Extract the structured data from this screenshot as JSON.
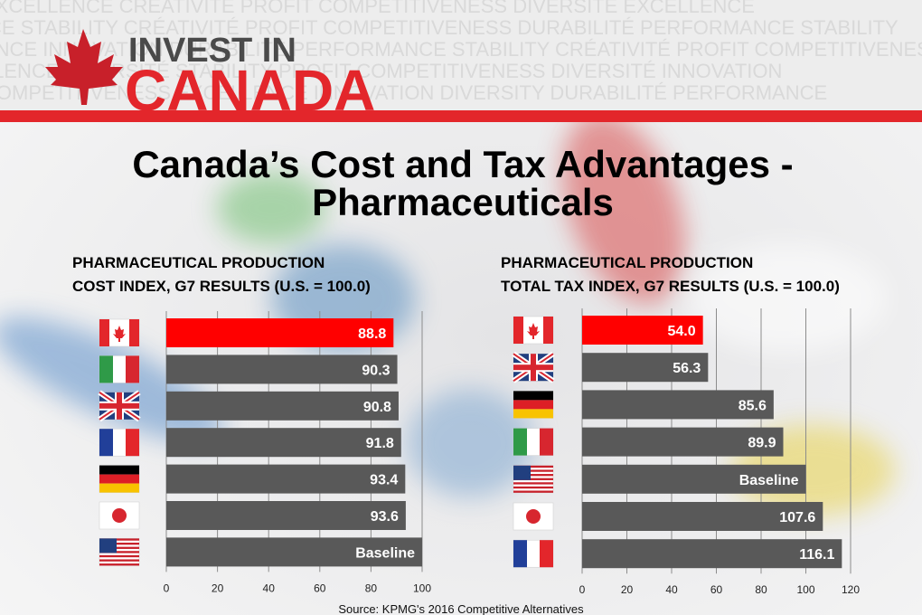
{
  "header": {
    "logo_line1": "INVEST IN",
    "logo_line2": "CANADA",
    "watermark": [
      "EXCELLENCE CRÉATIVITÉ PROFIT COMPETITIVENESS DIVERSITÉ EXCELLENCE",
      "FINANCE STABILITY CRÉATIVITÉ PROFIT COMPETITIVENESS DURABILITÉ PERFORMANCE STABILITY",
      "ENCE INNOVATION DURABILITÉ PERFORMANCE STABILITY CRÉATIVITÉ PROFIT COMPETITIVENESS",
      "EXCELLENCE DIVERSITÉ STABILITY PROFIT COMPETITIVENESS DIVERSITÉ INNOVATION",
      "COMPETITIVENESS EXCELLENCE INNOVATION DIVERSITY DURABILITÉ PERFORMANCE"
    ]
  },
  "title": [
    "Canada’s Cost and Tax Advantages -",
    "Pharmaceuticals"
  ],
  "chart_data": [
    {
      "type": "bar",
      "orientation": "horizontal",
      "title": [
        "PHARMACEUTICAL PRODUCTION",
        "COST INDEX, G7 RESULTS (U.S. = 100.0)"
      ],
      "categories": [
        null,
        null,
        null,
        null,
        null,
        null,
        null
      ],
      "values": [
        88.8,
        90.3,
        90.8,
        91.8,
        93.4,
        93.6,
        100
      ],
      "value_labels": [
        "88.8",
        "90.3",
        "90.8",
        "91.8",
        "93.4",
        "93.6",
        "Baseline"
      ],
      "colors": [
        "#ff0000",
        "#595959",
        "#595959",
        "#595959",
        "#595959",
        "#595959",
        "#595959"
      ],
      "xlim": [
        0,
        100
      ],
      "xticks": [
        0,
        20,
        40,
        60,
        80,
        100
      ],
      "grid": true
    },
    {
      "type": "bar",
      "orientation": "horizontal",
      "title": [
        "PHARMACEUTICAL PRODUCTION",
        "TOTAL TAX INDEX, G7 RESULTS (U.S. = 100.0)"
      ],
      "categories": [
        null,
        null,
        null,
        null,
        null,
        null,
        null
      ],
      "values": [
        54.0,
        56.3,
        85.6,
        89.9,
        100,
        107.6,
        116.1
      ],
      "value_labels": [
        "54.0",
        "56.3",
        "85.6",
        "89.9",
        "Baseline",
        "107.6",
        "116.1"
      ],
      "colors": [
        "#ff0000",
        "#595959",
        "#595959",
        "#595959",
        "#595959",
        "#595959",
        "#595959"
      ],
      "xlim": [
        0,
        120
      ],
      "xticks": [
        0,
        20,
        40,
        60,
        80,
        100,
        120
      ],
      "grid": true
    }
  ],
  "source": "Source: KPMG's 2016 Competitive Alternatives"
}
